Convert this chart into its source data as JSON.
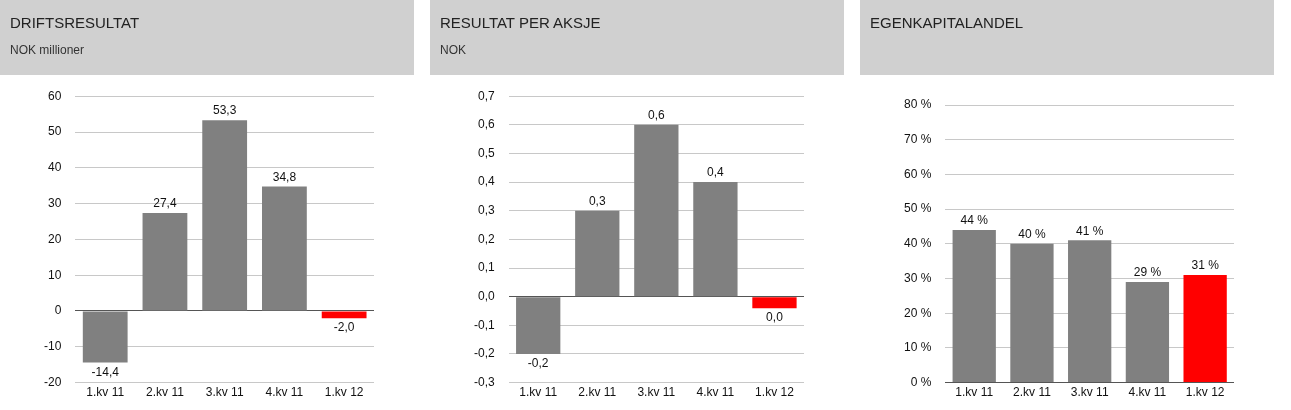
{
  "chart_data": [
    {
      "type": "bar",
      "title": "DRIFTSRESULTAT",
      "subtitle": "NOK millioner",
      "categories": [
        "1.kv 11",
        "2.kv 11",
        "3.kv 11",
        "4.kv 11",
        "1.kv 12"
      ],
      "values": [
        -14.4,
        27.4,
        53.3,
        34.8,
        -2.0
      ],
      "colors": [
        "#808080",
        "#808080",
        "#808080",
        "#808080",
        "#ff0000"
      ],
      "value_labels": [
        "-14,4",
        "27,4",
        "53,3",
        "34,8",
        "-2,0"
      ],
      "ylim": [
        -20,
        60
      ],
      "yticks": [
        -20,
        -10,
        0,
        10,
        20,
        30,
        40,
        50,
        60
      ],
      "grid": "y",
      "legend": false
    },
    {
      "type": "bar",
      "title": "RESULTAT PER AKSJE",
      "subtitle": "NOK",
      "categories": [
        "1.kv 11",
        "2.kv 11",
        "3.kv 11",
        "4.kv 11",
        "1.kv 12"
      ],
      "values": [
        -0.2,
        0.3,
        0.6,
        0.4,
        -0.04
      ],
      "colors": [
        "#808080",
        "#808080",
        "#808080",
        "#808080",
        "#ff0000"
      ],
      "value_labels": [
        "-0,2",
        "0,3",
        "0,6",
        "0,4",
        "0,0"
      ],
      "ylim": [
        -0.3,
        0.7
      ],
      "yticks": [
        {
          "value": -0.3,
          "label": "-0,3"
        },
        {
          "value": -0.2,
          "label": "-0,2"
        },
        {
          "value": -0.1,
          "label": "-0,1"
        },
        {
          "value": 0,
          "label": "0,0"
        },
        {
          "value": 0.1,
          "label": "0,1"
        },
        {
          "value": 0.2,
          "label": "0,2"
        },
        {
          "value": 0.3,
          "label": "0,3"
        },
        {
          "value": 0.4,
          "label": "0,4"
        },
        {
          "value": 0.5,
          "label": "0,5"
        },
        {
          "value": 0.6,
          "label": "0,6"
        },
        {
          "value": 0.7,
          "label": "0,7"
        }
      ],
      "grid": "y",
      "legend": false
    },
    {
      "type": "bar",
      "title": "EGENKAPITALANDEL",
      "categories": [
        "1.kv 11",
        "2.kv 11",
        "3.kv 11",
        "4.kv 11",
        "1.kv 12"
      ],
      "values": [
        44,
        40,
        41,
        29,
        31
      ],
      "colors": [
        "#808080",
        "#808080",
        "#808080",
        "#808080",
        "#ff0000"
      ],
      "value_labels": [
        "44 %",
        "40 %",
        "41 %",
        "29 %",
        "31 %"
      ],
      "ylim": [
        0,
        80
      ],
      "yticks": [
        {
          "value": 0,
          "label": "0 %"
        },
        {
          "value": 10,
          "label": "10 %"
        },
        {
          "value": 20,
          "label": "20 %"
        },
        {
          "value": 30,
          "label": "30 %"
        },
        {
          "value": 40,
          "label": "40 %"
        },
        {
          "value": 50,
          "label": "50 %"
        },
        {
          "value": 60,
          "label": "60 %"
        },
        {
          "value": 70,
          "label": "70 %"
        },
        {
          "value": 80,
          "label": "80 %"
        }
      ],
      "grid": "y",
      "legend": false
    }
  ]
}
